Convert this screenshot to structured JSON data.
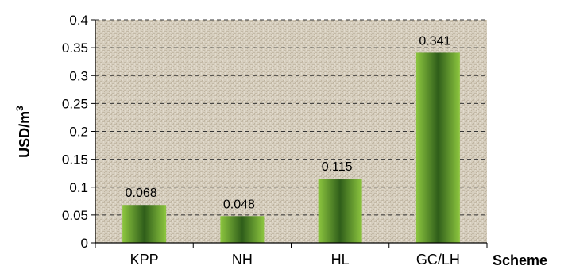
{
  "chart_data": {
    "type": "bar",
    "categories": [
      "KPP",
      "NH",
      "HL",
      "GC/LH"
    ],
    "values": [
      0.068,
      0.048,
      0.115,
      0.341
    ],
    "data_labels": [
      "0.068",
      "0.048",
      "0.115",
      "0.341"
    ],
    "title": "",
    "xlabel": "Scheme",
    "ylabel": "USD/m",
    "ylabel_superscript": "3",
    "ylim": [
      0,
      0.4
    ],
    "yticks": [
      "0",
      "0.05",
      "0.1",
      "0.15",
      "0.2",
      "0.25",
      "0.3",
      "0.35",
      "0.4"
    ],
    "grid": "horizontal dashed",
    "legend": "none",
    "colors": {
      "bar_edge": "#8dc63f",
      "bar_center": "#2f5e1a",
      "plot_background": "#d8d0c0",
      "gridline": "#333333",
      "axis": "#000000"
    }
  }
}
